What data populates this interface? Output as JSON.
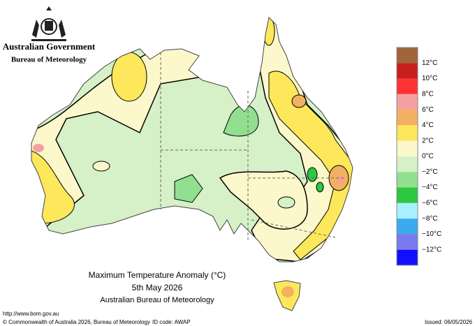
{
  "header": {
    "government": "Australian Government",
    "agency": "Bureau of Meteorology"
  },
  "map": {
    "title": "Maximum Temperature Anomaly (°C)",
    "date": "5th May 2026",
    "source": "Australian Bureau of Meteorology"
  },
  "legend": {
    "colors": [
      "#a0653a",
      "#c81e1e",
      "#ff3333",
      "#f5a0a0",
      "#f2b060",
      "#fce85a",
      "#fcf8cc",
      "#d6f0c8",
      "#90e090",
      "#2cc840",
      "#a8f0ff",
      "#3caaee",
      "#7a78ee",
      "#1010ff"
    ],
    "labels": [
      "12°C",
      "10°C",
      "8°C",
      "6°C",
      "4°C",
      "2°C",
      "0°C",
      "−2°C",
      "−4°C",
      "−6°C",
      "−8°C",
      "−10°C",
      "−12°C"
    ]
  },
  "footer": {
    "url": "http://www.bom.gov.au",
    "copyright": "© Commonwealth of Australia 2026, Bureau of Meteorology",
    "id_code": "ID code: AWAP",
    "issued": "Issued: 06/05/2026"
  }
}
